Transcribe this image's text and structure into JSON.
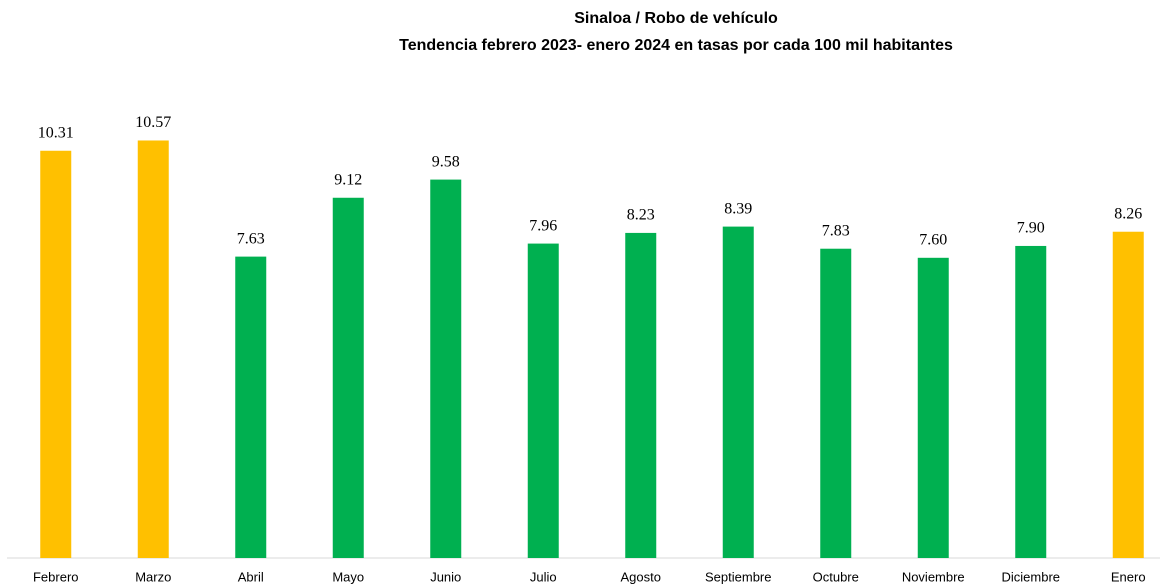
{
  "chart_data": {
    "type": "bar",
    "title": "Sinaloa / Robo de vehículo",
    "subtitle": "Tendencia febrero 2023- enero 2024 en tasas por cada  100 mil habitantes",
    "categories": [
      "Febrero",
      "Marzo",
      "Abril",
      "Mayo",
      "Junio",
      "Julio",
      "Agosto",
      "Septiembre",
      "Octubre",
      "Noviembre",
      "Diciembre",
      "Enero"
    ],
    "values": [
      10.31,
      10.57,
      7.63,
      9.12,
      9.58,
      7.96,
      8.23,
      8.39,
      7.83,
      7.6,
      7.9,
      8.26
    ],
    "value_labels": [
      "10.31",
      "10.57",
      "7.63",
      "9.12",
      "9.58",
      "7.96",
      "8.23",
      "8.39",
      "7.83",
      "7.60",
      "7.90",
      "8.26"
    ],
    "colors": [
      "#FFC000",
      "#FFC000",
      "#00B050",
      "#00B050",
      "#00B050",
      "#00B050",
      "#00B050",
      "#00B050",
      "#00B050",
      "#00B050",
      "#00B050",
      "#FFC000"
    ],
    "ylim": [
      0,
      12
    ]
  }
}
